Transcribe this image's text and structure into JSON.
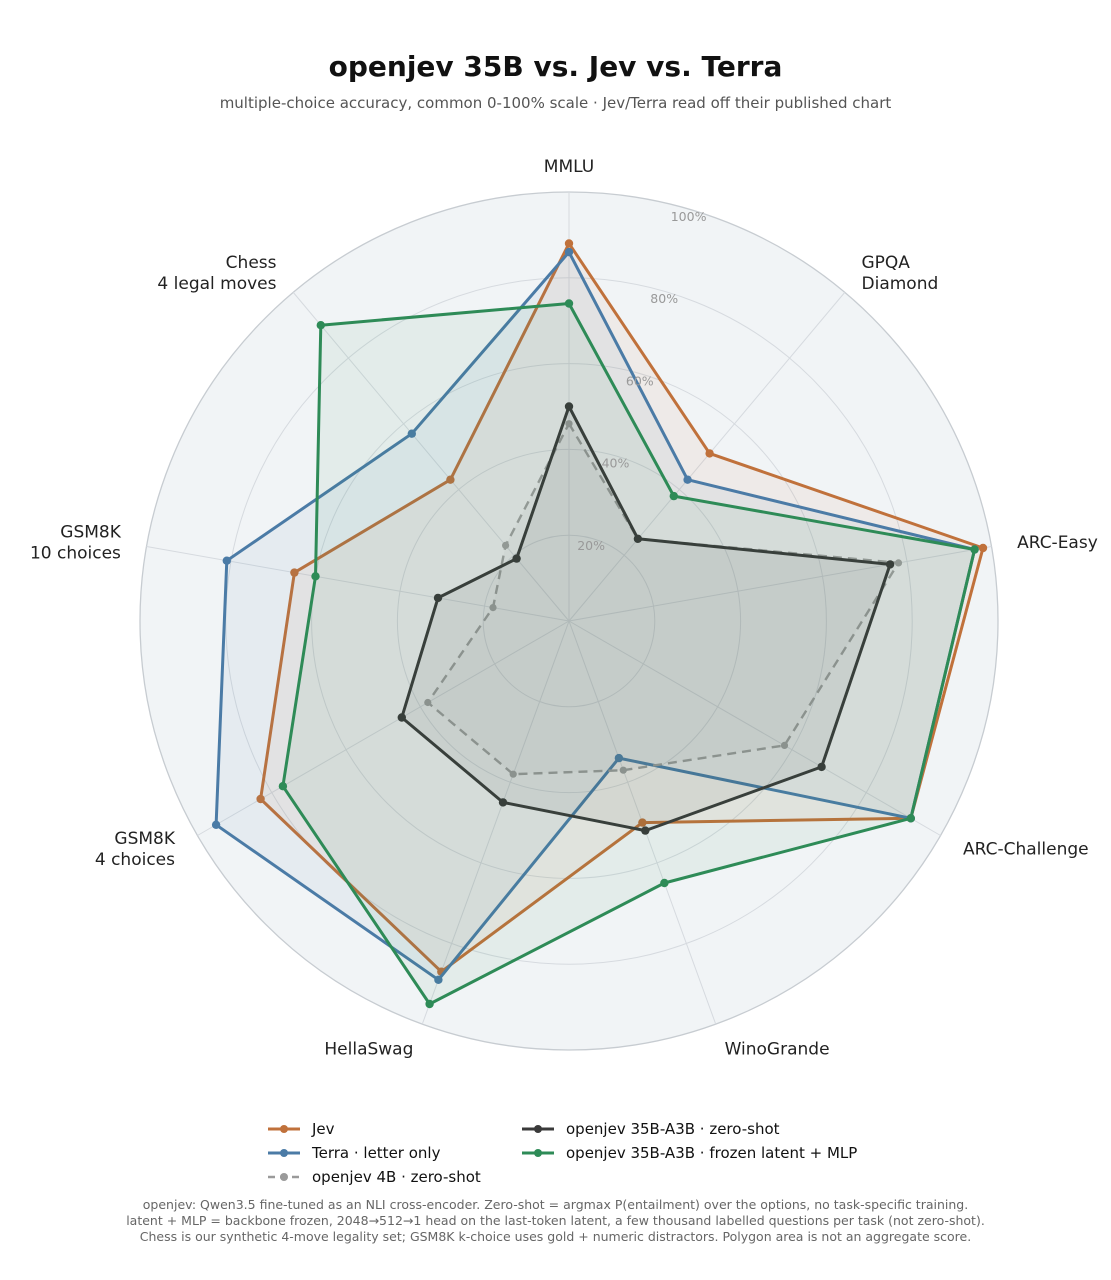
{
  "chart_data": {
    "type": "radar",
    "title": "openjev 35B vs. Jev vs. Terra",
    "subtitle": "multiple-choice accuracy, common 0-100% scale · Jev/Terra read off their published chart",
    "axes": [
      "MMLU",
      "GPQA\nDiamond",
      "ARC-Easy",
      "ARC-Challenge",
      "WinoGrande",
      "HellaSwag",
      "GSM8K\n4 choices",
      "GSM8K\n10 choices",
      "Chess\n4 legal moves"
    ],
    "rlim": [
      0,
      100
    ],
    "rticks": [
      20,
      40,
      60,
      80,
      100
    ],
    "rtick_labels": [
      "20%",
      "40%",
      "60%",
      "80%",
      "100%"
    ],
    "grid": true,
    "legend_position": "bottom",
    "series": [
      {
        "name": "Jev",
        "color": "#c0713b",
        "dashed": false,
        "values": [
          88,
          51,
          98,
          92,
          50,
          87,
          83,
          65,
          43
        ]
      },
      {
        "name": "Terra · letter only",
        "color": "#4b7ba6",
        "dashed": false,
        "values": [
          86,
          43,
          96,
          92,
          34,
          89,
          95,
          81,
          57
        ]
      },
      {
        "name": "openjev 4B · zero-shot",
        "color": "#9a9a9a",
        "dashed": true,
        "values": [
          46,
          25,
          78,
          58,
          37,
          38,
          38,
          18,
          23
        ]
      },
      {
        "name": "openjev 35B-A3B · zero-shot",
        "color": "#3a3a3a",
        "dashed": false,
        "values": [
          50,
          25,
          76,
          68,
          52,
          45,
          45,
          31,
          19
        ]
      },
      {
        "name": "openjev 35B-A3B · frozen latent + MLP",
        "color": "#2e8b57",
        "dashed": false,
        "values": [
          74,
          38,
          96,
          92,
          65,
          95,
          77,
          60,
          90
        ]
      }
    ]
  },
  "footnote": {
    "line1": "openjev: Qwen3.5 fine-tuned as an NLI cross-encoder. Zero-shot = argmax P(entailment) over the options, no task-specific training.",
    "line2": "latent + MLP = backbone frozen, 2048→512→1 head on the last-token latent, a few thousand labelled questions per task (not zero-shot).",
    "line3": "Chess is our synthetic 4-move legality set; GSM8K k-choice uses gold + numeric distractors. Polygon area is not an aggregate score."
  }
}
